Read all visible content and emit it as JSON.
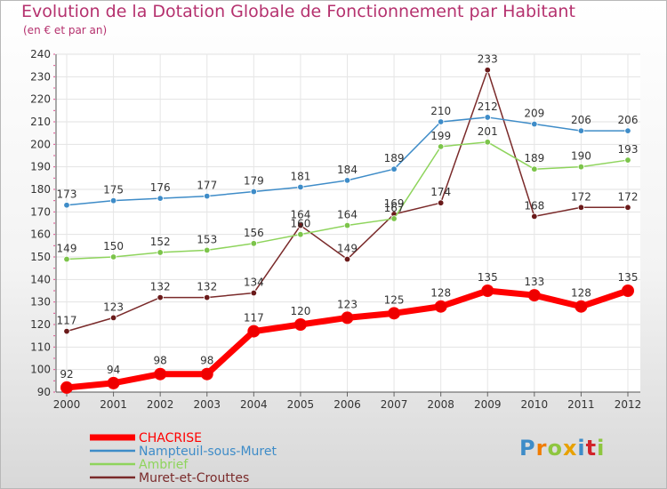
{
  "chart_data": {
    "type": "line",
    "title": "Evolution de la Dotation Globale de Fonctionnement par Habitant",
    "subtitle": "(en € et par an)",
    "xlabel": "",
    "ylabel": "",
    "categories": [
      "2000",
      "2001",
      "2002",
      "2003",
      "2004",
      "2005",
      "2006",
      "2007",
      "2008",
      "2009",
      "2010",
      "2011",
      "2012"
    ],
    "ylim": [
      90,
      240
    ],
    "yticks": [
      90,
      100,
      110,
      120,
      130,
      140,
      150,
      160,
      170,
      180,
      190,
      200,
      210,
      220,
      230,
      240
    ],
    "grid": true,
    "legend": "bottom-left",
    "series": [
      {
        "name": "CHACRISE",
        "color": "#ff0000",
        "point_color": "#ee0000",
        "values": [
          92,
          94,
          98,
          98,
          117,
          120,
          123,
          125,
          128,
          135,
          133,
          128,
          135
        ]
      },
      {
        "name": "Nampteuil-sous-Muret",
        "color": "#3e8cc8",
        "point_color": "#3e8cc8",
        "values": [
          173,
          175,
          176,
          177,
          179,
          181,
          184,
          189,
          210,
          212,
          209,
          206,
          206
        ]
      },
      {
        "name": "Ambrief",
        "color": "#8ed45c",
        "point_color": "#7cc44a",
        "values": [
          149,
          150,
          152,
          153,
          156,
          160,
          164,
          167,
          199,
          201,
          189,
          190,
          193
        ]
      },
      {
        "name": "Muret-et-Crouttes",
        "color": "#7a2a2a",
        "point_color": "#6a1a1a",
        "values": [
          117,
          123,
          132,
          132,
          134,
          164,
          149,
          169,
          174,
          233,
          168,
          172,
          172
        ]
      }
    ],
    "data_labels": {
      "CHACRISE": [
        "92",
        "94",
        "98",
        "98",
        "117",
        "120",
        "123",
        "125",
        "128",
        "135",
        "133",
        "128",
        "135"
      ],
      "Nampteuil-sous-Muret": [
        "173",
        "175",
        "176",
        "177",
        "179",
        "181",
        "184",
        "189",
        "210",
        "212",
        "209",
        "206",
        "206"
      ],
      "Ambrief": [
        "149",
        "150",
        "152",
        "153",
        "156",
        "160",
        "164",
        "167",
        "199",
        "201",
        "189",
        "190",
        "193"
      ],
      "Muret-et-Crouttes": [
        "117",
        "123",
        "132",
        "132",
        "134",
        "164",
        "149",
        "169",
        "174",
        "233",
        "168",
        "172",
        "172"
      ]
    }
  },
  "logo": {
    "text": "Proxiti",
    "colors": [
      "#3e8cc8",
      "#f07c00",
      "#8ec63f",
      "#e8a100",
      "#3e8cc8",
      "#d2232a",
      "#8ec63f"
    ]
  }
}
